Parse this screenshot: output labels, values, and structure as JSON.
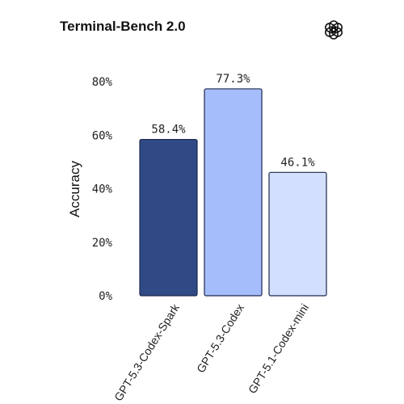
{
  "logo_icon": "openai-logo-icon",
  "chart_data": {
    "type": "bar",
    "title": "Terminal-Bench 2.0",
    "ylabel": "Accuracy",
    "xlabel": "",
    "categories": [
      "GPT-5.3-Codex-Spark",
      "GPT-5.3-Codex",
      "GPT-5.1-Codex-mini"
    ],
    "values": [
      58.4,
      77.3,
      46.1
    ],
    "data_labels": [
      "58.4%",
      "77.3%",
      "46.1%"
    ],
    "colors": [
      "#2f4a85",
      "#a6bdfb",
      "#d2e0fd"
    ],
    "edge_color": "#1c2a4e",
    "ylim": [
      0,
      80
    ],
    "yticks": [
      0,
      20,
      40,
      60,
      80
    ],
    "ytick_labels": [
      "0%",
      "20%",
      "40%",
      "60%",
      "80%"
    ],
    "grid": false,
    "legend": "none"
  }
}
